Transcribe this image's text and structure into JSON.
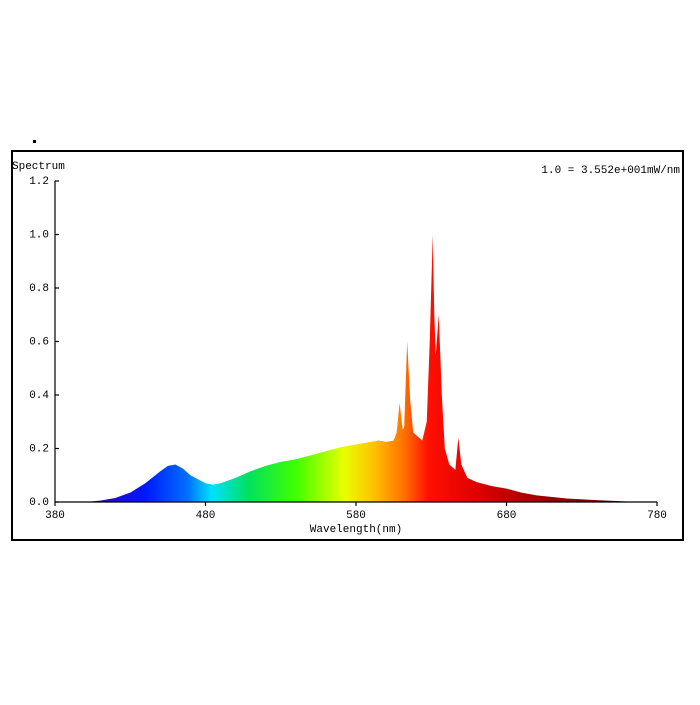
{
  "chart_data": {
    "type": "area",
    "title": "Spectrum",
    "annotation": "1.0 = 3.552e+001mW/nm",
    "x_label": "Wavelength(nm)",
    "x": [
      400,
      410,
      420,
      430,
      440,
      450,
      455,
      460,
      465,
      470,
      480,
      485,
      490,
      500,
      510,
      520,
      530,
      540,
      550,
      560,
      570,
      580,
      590,
      595,
      600,
      605,
      607,
      609,
      611,
      612,
      614,
      616,
      618,
      622,
      624,
      627,
      629,
      631,
      632,
      633,
      635,
      637,
      639,
      642,
      646,
      648,
      650,
      654,
      660,
      670,
      680,
      690,
      700,
      720,
      740,
      760,
      770
    ],
    "values": [
      0,
      0.005,
      0.015,
      0.035,
      0.07,
      0.115,
      0.135,
      0.14,
      0.125,
      0.1,
      0.07,
      0.065,
      0.07,
      0.09,
      0.115,
      0.135,
      0.15,
      0.16,
      0.175,
      0.19,
      0.205,
      0.215,
      0.225,
      0.23,
      0.225,
      0.23,
      0.26,
      0.37,
      0.27,
      0.28,
      0.6,
      0.38,
      0.26,
      0.24,
      0.23,
      0.3,
      0.6,
      1.0,
      0.7,
      0.55,
      0.7,
      0.4,
      0.2,
      0.14,
      0.12,
      0.24,
      0.14,
      0.09,
      0.075,
      0.06,
      0.05,
      0.035,
      0.025,
      0.013,
      0.007,
      0.002,
      0
    ],
    "xlim": [
      380,
      780
    ],
    "xticks": [
      380,
      480,
      580,
      680,
      780
    ],
    "ylim": [
      0,
      1.2
    ],
    "yticks": [
      {
        "value": 0,
        "label": "0.0"
      },
      0.2,
      0.4,
      0.6,
      0.8,
      {
        "value": 1,
        "label": "1.0"
      },
      1.2
    ]
  }
}
